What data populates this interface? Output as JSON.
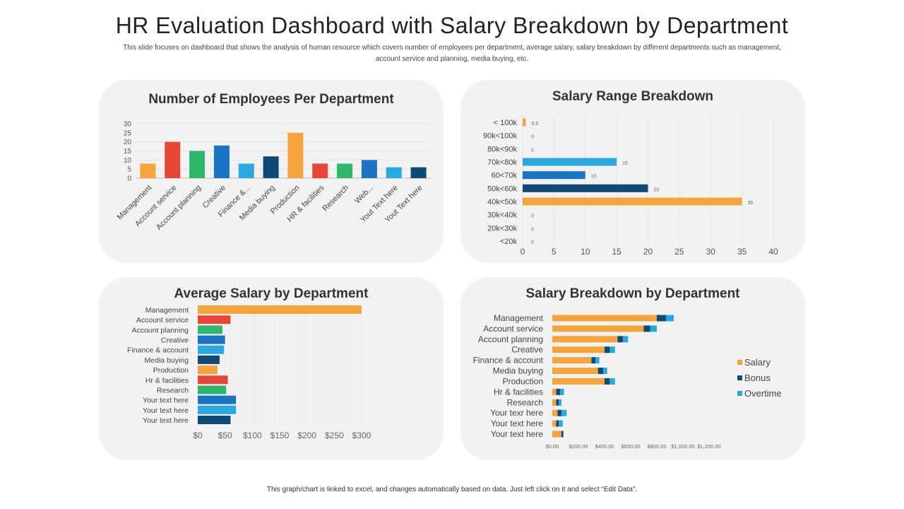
{
  "header": {
    "title": "HR Evaluation Dashboard with Salary Breakdown by Department",
    "subtitle": "This slide focuses on dashboard that shows the analysis of human resource which covers number of employees per department, average salary, salary breakdown by different departments such as management, account service and planning, media buying, etc."
  },
  "footer": {
    "note": "This graph/chart is linked to excel, and changes automatically based on data. Just left click on it and select “Edit Data”."
  },
  "chart_data": [
    {
      "type": "bar",
      "title": "Number of Employees Per Department",
      "categories": [
        "Management",
        "Account service",
        "Account planning",
        "Creative",
        "Finance &...",
        "Media buying",
        "Production",
        "HR & facilities",
        "Research",
        "Web...",
        "Yout Text here",
        "Yout Text here"
      ],
      "values": [
        8,
        20,
        15,
        18,
        8,
        12,
        25,
        8,
        8,
        10,
        6,
        6
      ],
      "colors": [
        "#f4a43b",
        "#e74536",
        "#2eb66b",
        "#1a74c3",
        "#2aa8e0",
        "#0f4a77",
        "#f4a43b",
        "#e74536",
        "#2eb66b",
        "#1a74c3",
        "#2aa8e0",
        "#0f4a77"
      ],
      "yticks": [
        "0",
        "5",
        "10",
        "15",
        "20",
        "25",
        "30"
      ],
      "ylim": [
        0,
        30
      ]
    },
    {
      "type": "bar",
      "orientation": "horizontal",
      "title": "Salary Range Breakdown",
      "categories": [
        "< 100k",
        "90k<100k",
        "80k<90k",
        "70k<80k",
        "60<70k",
        "50k<60k",
        "40k<50k",
        "30k<40k",
        "20k<30k",
        "<20k"
      ],
      "values": [
        0.5,
        0,
        0,
        15,
        10,
        20,
        35,
        0,
        0,
        0
      ],
      "value_labels": [
        "0.5",
        "0",
        "0",
        "15",
        "10",
        "20",
        "35",
        "0",
        "0",
        "0"
      ],
      "colors": [
        "#f4a43b",
        "#2aa8e0",
        "#2aa8e0",
        "#2aa8e0",
        "#1a74c3",
        "#0f4a77",
        "#f4a43b",
        "#2aa8e0",
        "#2aa8e0",
        "#2aa8e0"
      ],
      "xticks": [
        "0",
        "5",
        "10",
        "15",
        "20",
        "25",
        "30",
        "35",
        "40"
      ],
      "xlim": [
        0,
        40
      ]
    },
    {
      "type": "bar",
      "orientation": "horizontal",
      "title": "Average Salary by Department",
      "categories": [
        "Management",
        "Account service",
        "Account planning",
        "Creative",
        "Finance & account",
        "Media buying",
        "Production",
        "Hr & facilities",
        "Research",
        "Your text here",
        "Your text here",
        "Your text here"
      ],
      "values": [
        300,
        60,
        45,
        50,
        48,
        40,
        36,
        55,
        52,
        70,
        70,
        60
      ],
      "colors": [
        "#f4a43b",
        "#e74536",
        "#2eb66b",
        "#1a74c3",
        "#2aa8e0",
        "#0f4a77",
        "#f4a43b",
        "#e74536",
        "#2eb66b",
        "#1a74c3",
        "#2aa8e0",
        "#0f4a77"
      ],
      "xticks": [
        "$0",
        "$50",
        "$100",
        "$150",
        "$200",
        "$250",
        "$300"
      ],
      "xlim": [
        0,
        300
      ]
    },
    {
      "type": "bar",
      "orientation": "horizontal",
      "stacked": true,
      "title": "Salary Breakdown by Department",
      "categories": [
        "Management",
        "Account service",
        "Account planning",
        "Creative",
        "Finance & account",
        "Media buying",
        "Production",
        "Hr & facilities",
        "Research",
        "Your texr here",
        "Your text here",
        "Your text here"
      ],
      "series": [
        {
          "name": "Salary",
          "color": "#f4a43b",
          "values": [
            800,
            700,
            500,
            400,
            300,
            350,
            400,
            30,
            30,
            40,
            30,
            70
          ]
        },
        {
          "name": "Bonus",
          "color": "#0f4a77",
          "values": [
            70,
            50,
            40,
            40,
            30,
            40,
            40,
            30,
            20,
            30,
            20,
            15
          ]
        },
        {
          "name": "Overtime",
          "color": "#2aa8e0",
          "values": [
            60,
            50,
            40,
            40,
            30,
            30,
            40,
            30,
            20,
            40,
            30,
            0
          ]
        }
      ],
      "xticks": [
        "$0.00",
        "$200.00",
        "$400.00",
        "$600.00",
        "$800.00",
        "$1,000.00",
        "$1,200.00"
      ],
      "xlim": [
        0,
        1200
      ],
      "legend": "right"
    }
  ]
}
